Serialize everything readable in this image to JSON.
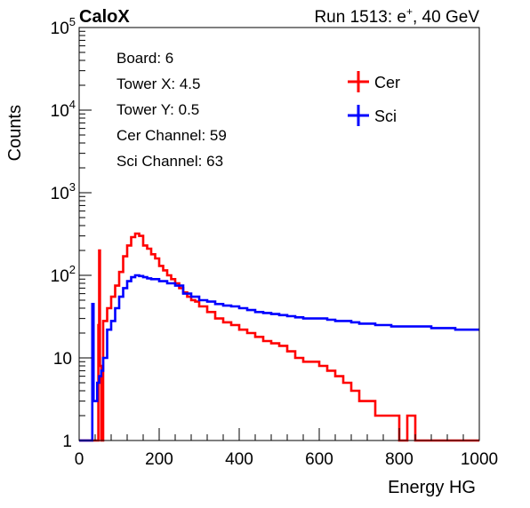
{
  "header": {
    "left": "CaloX",
    "right_prefix": "Run 1513: e",
    "right_sup": "+",
    "right_suffix": ", 40 GeV"
  },
  "info": {
    "board": "Board: 6",
    "tower_x": "Tower X: 4.5",
    "tower_y": "Tower Y: 0.5",
    "cer_channel": "Cer Channel: 59",
    "sci_channel": "Sci Channel: 63"
  },
  "chart_data": {
    "type": "line",
    "xlabel": "Energy HG",
    "ylabel": "Counts",
    "xlim": [
      0,
      1000
    ],
    "ylim": [
      1,
      100000
    ],
    "log_y": true,
    "grid": false,
    "legend_position": "top-right",
    "x_ticks": [
      {
        "value": 0,
        "label": "0"
      },
      {
        "value": 200,
        "label": "200"
      },
      {
        "value": 400,
        "label": "400"
      },
      {
        "value": 600,
        "label": "600"
      },
      {
        "value": 800,
        "label": "800"
      },
      {
        "value": 1000,
        "label": "1000"
      }
    ],
    "y_ticks": [
      {
        "value": 1,
        "base": "1",
        "exp": ""
      },
      {
        "value": 10,
        "base": "10",
        "exp": ""
      },
      {
        "value": 100,
        "base": "10",
        "exp": "2"
      },
      {
        "value": 1000,
        "base": "10",
        "exp": "3"
      },
      {
        "value": 10000,
        "base": "10",
        "exp": "4"
      },
      {
        "value": 100000,
        "base": "10",
        "exp": "5"
      }
    ],
    "series": [
      {
        "name": "Cer",
        "color": "#ff0000",
        "x": [
          0,
          40,
          45,
          48,
          50,
          52,
          55,
          60,
          70,
          80,
          90,
          100,
          110,
          120,
          130,
          140,
          150,
          160,
          170,
          180,
          190,
          200,
          210,
          220,
          230,
          240,
          250,
          260,
          270,
          280,
          290,
          300,
          320,
          340,
          360,
          380,
          400,
          420,
          440,
          460,
          480,
          500,
          520,
          540,
          560,
          580,
          600,
          620,
          640,
          660,
          680,
          700,
          720,
          740,
          760,
          780,
          800,
          820,
          840,
          860,
          880,
          900,
          920,
          940,
          960,
          980,
          1000
        ],
        "y": [
          1,
          1,
          1,
          25,
          200,
          8,
          1,
          28,
          40,
          55,
          75,
          110,
          170,
          230,
          290,
          320,
          300,
          230,
          210,
          180,
          160,
          130,
          115,
          100,
          90,
          80,
          70,
          62,
          55,
          50,
          48,
          42,
          36,
          30,
          27,
          25,
          22,
          20,
          18,
          16,
          15,
          14,
          12,
          10,
          9,
          9,
          8,
          7,
          6,
          5,
          4,
          3,
          3,
          2,
          2,
          2,
          1,
          2,
          1,
          1,
          1,
          1,
          1,
          1,
          1,
          1,
          1
        ]
      },
      {
        "name": "Sci",
        "color": "#0000ff",
        "x": [
          0,
          30,
          33,
          36,
          40,
          45,
          50,
          55,
          60,
          70,
          80,
          90,
          100,
          110,
          120,
          130,
          140,
          150,
          160,
          170,
          180,
          200,
          220,
          240,
          260,
          280,
          300,
          320,
          340,
          360,
          380,
          400,
          420,
          440,
          460,
          480,
          500,
          520,
          540,
          560,
          580,
          600,
          620,
          640,
          660,
          680,
          700,
          720,
          740,
          760,
          780,
          800,
          820,
          840,
          860,
          880,
          900,
          920,
          940,
          960,
          980,
          1000
        ],
        "y": [
          1,
          1,
          45,
          3,
          3,
          5,
          6,
          7,
          10,
          22,
          28,
          40,
          55,
          70,
          85,
          95,
          100,
          98,
          95,
          92,
          90,
          85,
          80,
          75,
          60,
          55,
          50,
          48,
          45,
          43,
          42,
          40,
          38,
          36,
          35,
          34,
          33,
          32,
          31,
          30,
          30,
          30,
          29,
          28,
          28,
          27,
          26,
          26,
          25,
          25,
          24,
          24,
          24,
          24,
          24,
          23,
          23,
          23,
          22,
          22,
          22,
          22
        ]
      }
    ]
  }
}
